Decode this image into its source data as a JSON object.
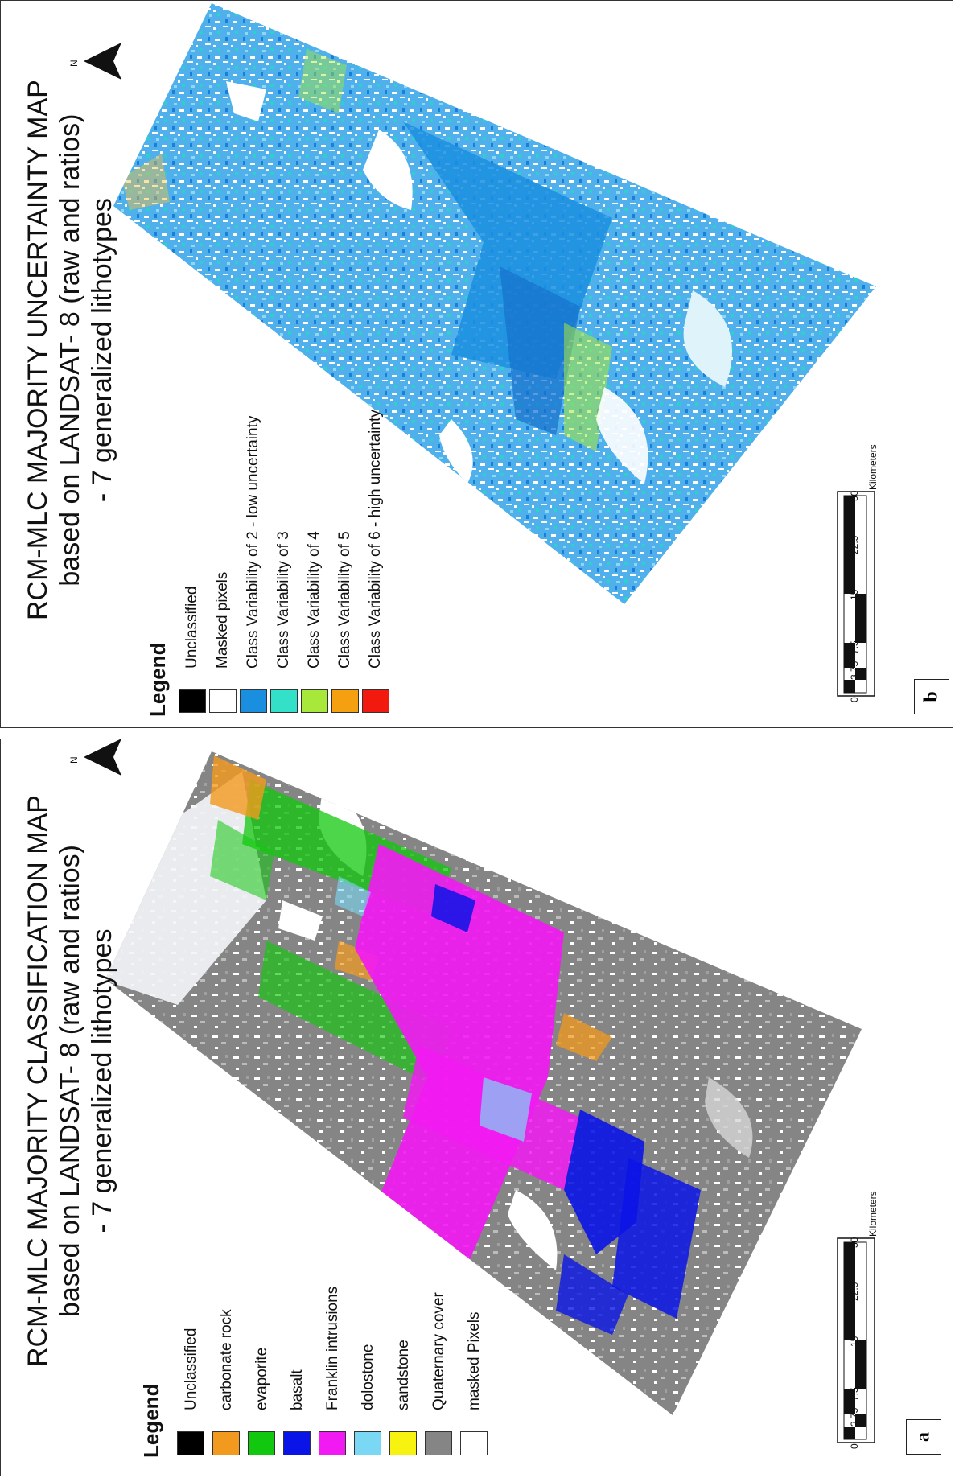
{
  "panels": {
    "b": {
      "title_lines": [
        "RCM-MLC MAJORITY UNCERTAINTY MAP",
        "based on LANDSAT- 8 (raw and ratios)",
        "- 7 generalized lithotypes"
      ],
      "legend_title": "Legend",
      "legend": [
        {
          "label": "Unclassified",
          "color": "#000000"
        },
        {
          "label": "Masked pixels",
          "color": "#ffffff"
        },
        {
          "label": "Class Variability of 2 - low uncertainty",
          "color": "#1a8fe0"
        },
        {
          "label": "Class Variability of 3",
          "color": "#33e0c8"
        },
        {
          "label": "Class Variability of 4",
          "color": "#a8e83a"
        },
        {
          "label": "Class Variability of 5",
          "color": "#f4a010"
        },
        {
          "label": "Class Variability of 6 - high uncertainty",
          "color": "#f21a0e"
        }
      ],
      "scale": {
        "ticks": [
          "0",
          "3.75",
          "7.5",
          "15",
          "22.5",
          "30"
        ],
        "unit": "Kilometers"
      },
      "north": "N",
      "tag": "b"
    },
    "a": {
      "title_lines": [
        "RCM-MLC MAJORITY CLASSIFICATION MAP",
        "based on LANDSAT- 8 (raw and ratios)",
        "- 7 generalized lithotypes"
      ],
      "legend_title": "Legend",
      "legend": [
        {
          "label": "Unclassified",
          "color": "#000000"
        },
        {
          "label": "carbonate rock",
          "color": "#f29a1d"
        },
        {
          "label": "evaporite",
          "color": "#12c80e"
        },
        {
          "label": "basalt",
          "color": "#0a14e6"
        },
        {
          "label": "Franklin intrusions",
          "color": "#f21af2"
        },
        {
          "label": "dolostone",
          "color": "#7ad8f5"
        },
        {
          "label": "sandstone",
          "color": "#f7f20f"
        },
        {
          "label": "Quaternary cover",
          "color": "#858585"
        },
        {
          "label": "masked Pixels",
          "color": "#ffffff"
        }
      ],
      "scale": {
        "ticks": [
          "0",
          "3.75",
          "7.5",
          "15",
          "22.5",
          "30"
        ],
        "unit": "Kilometers"
      },
      "north": "N",
      "tag": "a"
    }
  }
}
